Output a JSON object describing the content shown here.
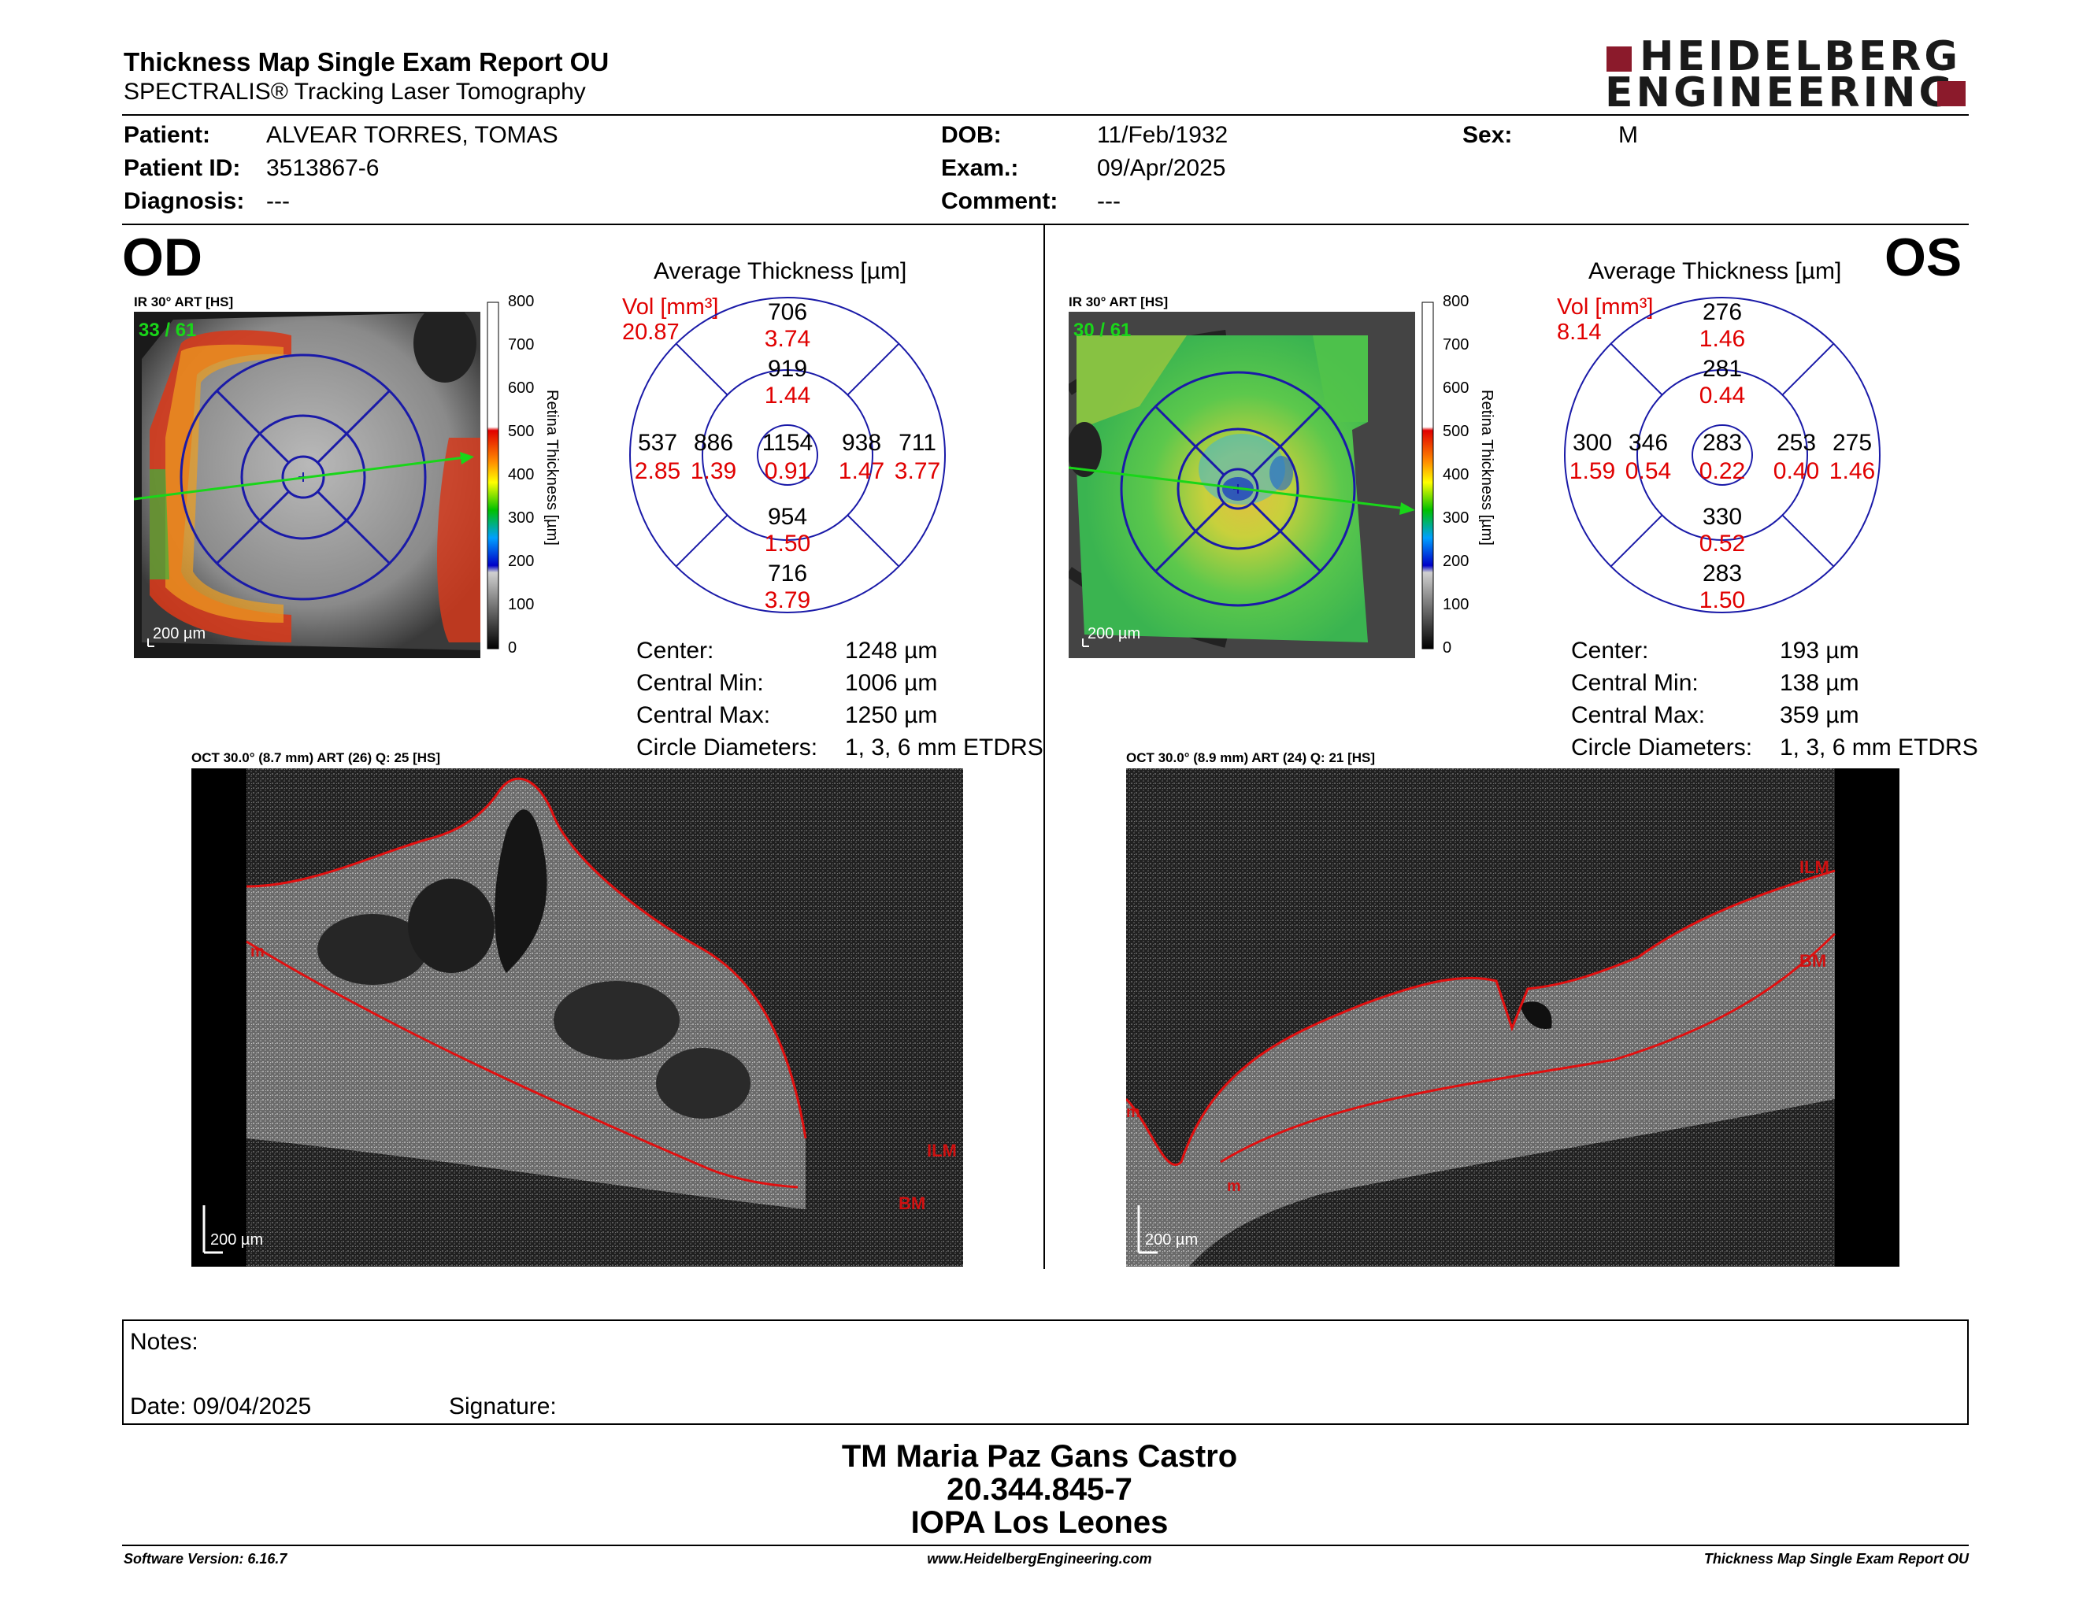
{
  "header": {
    "title": "Thickness Map Single Exam Report OU",
    "subtitle": "SPECTRALIS® Tracking Laser Tomography",
    "logo_line1": "HEIDELBERG",
    "logo_line2": "ENGINEERING"
  },
  "patient": {
    "patient_label": "Patient:",
    "patient_value": "ALVEAR TORRES, TOMAS",
    "id_label": "Patient ID:",
    "id_value": "3513867-6",
    "diagnosis_label": "Diagnosis:",
    "diagnosis_value": "---",
    "dob_label": "DOB:",
    "dob_value": "11/Feb/1932",
    "exam_label": "Exam.:",
    "exam_value": "09/Apr/2025",
    "comment_label": "Comment:",
    "comment_value": "---",
    "sex_label": "Sex:",
    "sex_value": "M"
  },
  "od": {
    "eye": "OD",
    "ir_caption": "IR 30° ART [HS]",
    "frame_counter": "33 / 61",
    "scale_label": "200 µm",
    "avg_title": "Average Thickness [µm]",
    "vol_label": "Vol [mm³]",
    "vol_value": "20.87",
    "sectors": {
      "top_outer": "706",
      "top_outer_vol": "3.74",
      "top_inner": "919",
      "top_inner_vol": "1.44",
      "left_outer": "537",
      "left_outer_vol": "2.85",
      "left_inner": "886",
      "left_inner_vol": "1.39",
      "center": "1154",
      "center_vol": "0.91",
      "right_inner": "938",
      "right_inner_vol": "1.47",
      "right_outer": "711",
      "right_outer_vol": "3.77",
      "bottom_inner": "954",
      "bottom_inner_vol": "1.50",
      "bottom_outer": "716",
      "bottom_outer_vol": "3.79"
    },
    "stats": {
      "center_label": "Center:",
      "center_value": "1248 µm",
      "min_label": "Central Min:",
      "min_value": "1006 µm",
      "max_label": "Central Max:",
      "max_value": "1250 µm",
      "diam_label": "Circle Diameters:",
      "diam_value": "1, 3, 6 mm ETDRS"
    },
    "oct_caption": "OCT 30.0° (8.7 mm) ART (26) Q: 25 [HS]",
    "oct_scale": "200 µm",
    "oct_labels": {
      "ilm": "ILM",
      "bm": "BM",
      "m": "m"
    }
  },
  "os": {
    "eye": "OS",
    "ir_caption": "IR 30° ART [HS]",
    "frame_counter": "30 / 61",
    "scale_label": "200 µm",
    "avg_title": "Average Thickness [µm]",
    "vol_label": "Vol [mm³]",
    "vol_value": "8.14",
    "sectors": {
      "top_outer": "276",
      "top_outer_vol": "1.46",
      "top_inner": "281",
      "top_inner_vol": "0.44",
      "left_outer": "300",
      "left_outer_vol": "1.59",
      "left_inner": "346",
      "left_inner_vol": "0.54",
      "center": "283",
      "center_vol": "0.22",
      "right_inner": "253",
      "right_inner_vol": "0.40",
      "right_outer": "275",
      "right_outer_vol": "1.46",
      "bottom_inner": "330",
      "bottom_inner_vol": "0.52",
      "bottom_outer": "283",
      "bottom_outer_vol": "1.50"
    },
    "stats": {
      "center_label": "Center:",
      "center_value": "193 µm",
      "min_label": "Central Min:",
      "min_value": "138 µm",
      "max_label": "Central Max:",
      "max_value": "359 µm",
      "diam_label": "Circle Diameters:",
      "diam_value": "1, 3, 6 mm ETDRS"
    },
    "oct_caption": "OCT 30.0° (8.9 mm) ART (24) Q: 21 [HS]",
    "oct_scale": "200 µm",
    "oct_labels": {
      "ilm": "ILM",
      "bm": "BM",
      "m": "m",
      "m2": "m"
    }
  },
  "colorbar": {
    "ticks": [
      "800",
      "700",
      "600",
      "500",
      "400",
      "300",
      "200",
      "100",
      "0"
    ],
    "label": "Retina  Thickness [µm]"
  },
  "notes": {
    "notes_label": "Notes:",
    "date_label": "Date: 09/04/2025",
    "signature_label": "Signature:"
  },
  "signature": {
    "name": "TM Maria Paz Gans Castro",
    "id": "20.344.845-7",
    "place": "IOPA Los Leones"
  },
  "footer": {
    "software": "Software Version: 6.16.7",
    "website": "www.HeidelbergEngineering.com",
    "report": "Thickness Map Single Exam Report OU"
  },
  "colors": {
    "vol_red": "#e00000",
    "grid_blue": "#1a1aa8",
    "scan_green": "#19d619",
    "logo_red": "#8b1a2b"
  }
}
